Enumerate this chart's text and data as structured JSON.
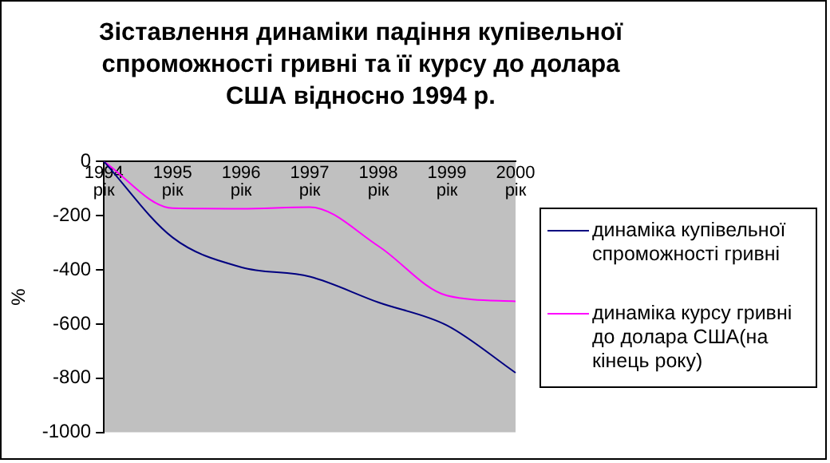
{
  "chart_data": {
    "type": "line",
    "title": "Зіставлення динаміки падіння купівельної спроможності гривні та її курсу до долара США відносно 1994 р.",
    "ylabel": "%",
    "categories": [
      "1994 рік",
      "1995 рік",
      "1996 рік",
      "1997 рік",
      "1998 рік",
      "1999 рік",
      "2000 рік"
    ],
    "series": [
      {
        "name": "динаміка купівельної спроможності гривні",
        "color": "#000080",
        "values": [
          0,
          -280,
          -390,
          -425,
          -520,
          -605,
          -780
        ]
      },
      {
        "name": "динаміка курсу гривні до долара США(на кінець року)",
        "color": "#ff00ff",
        "values": [
          0,
          -172,
          -174,
          -168,
          -312,
          -495,
          -516
        ]
      }
    ],
    "ylim": [
      -1000,
      0
    ],
    "yticks": [
      -1000,
      -800,
      -600,
      -400,
      -200,
      0
    ],
    "grid": false,
    "legend": "right",
    "marker": "none",
    "line_style": "solid"
  }
}
